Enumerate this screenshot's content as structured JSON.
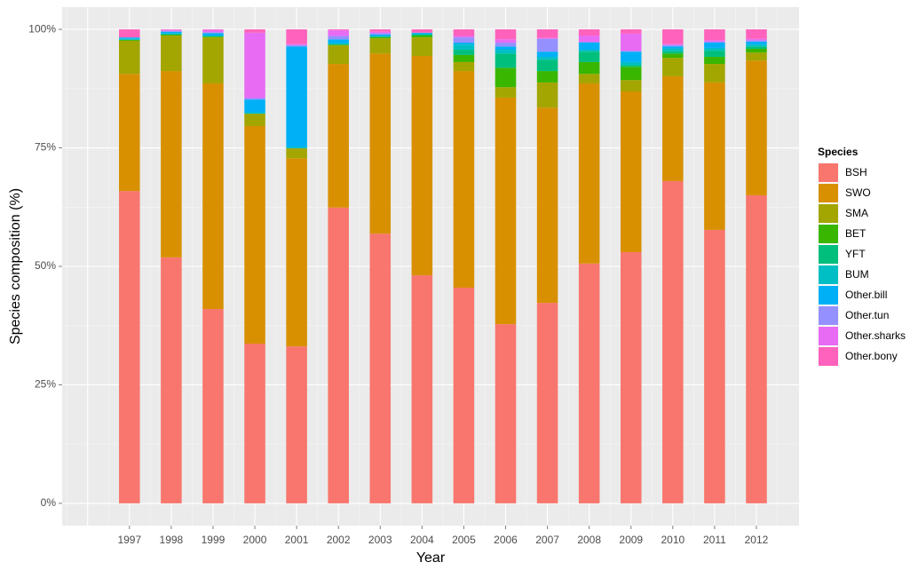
{
  "chart_data": {
    "type": "stacked_bar",
    "x_label": "Year",
    "y_label": "Species composition (%)",
    "legend_title": "Species",
    "legend_position": "right",
    "grid": true,
    "x": [
      1997,
      1998,
      1999,
      2000,
      2001,
      2002,
      2003,
      2004,
      2005,
      2006,
      2007,
      2008,
      2009,
      2010,
      2011,
      2012
    ],
    "xlim": [
      1995.39,
      2013.02
    ],
    "xticks": [
      1997,
      1998,
      1999,
      2000,
      2001,
      2002,
      2003,
      2004,
      2005,
      2006,
      2007,
      2008,
      2009,
      2010,
      2011,
      2012
    ],
    "ylim": [
      -4.7,
      104.7
    ],
    "yticks": [
      {
        "value": 0,
        "label": "0%"
      },
      {
        "value": 25,
        "label": "25%"
      },
      {
        "value": 50,
        "label": "50%"
      },
      {
        "value": 75,
        "label": "75%"
      },
      {
        "value": 100,
        "label": "100%"
      }
    ],
    "series": [
      {
        "name": "BSH",
        "color": "#F8766D",
        "values": [
          65.9,
          51.9,
          41.0,
          33.7,
          33.1,
          62.4,
          56.9,
          48.1,
          45.5,
          37.8,
          42.3,
          50.6,
          53.0,
          68.0,
          57.7,
          65.0
        ]
      },
      {
        "name": "SWO",
        "color": "#D89000",
        "values": [
          24.7,
          39.3,
          47.6,
          45.9,
          39.7,
          30.3,
          38.0,
          46.3,
          45.7,
          47.8,
          41.2,
          38.0,
          33.9,
          22.1,
          31.1,
          28.4
        ]
      },
      {
        "name": "SMA",
        "color": "#A3A500",
        "values": [
          7.0,
          7.5,
          9.7,
          2.6,
          2.1,
          3.9,
          3.2,
          3.9,
          1.9,
          2.2,
          5.3,
          2.0,
          2.4,
          3.9,
          3.9,
          1.7
        ]
      },
      {
        "name": "BET",
        "color": "#39B600",
        "values": [
          0.2,
          0.2,
          0.2,
          0,
          0,
          0.2,
          0.3,
          0.4,
          1.5,
          4.1,
          2.4,
          2.5,
          2.8,
          0.9,
          1.5,
          0.8
        ]
      },
      {
        "name": "YFT",
        "color": "#00BF7D",
        "values": [
          0,
          0,
          0,
          0,
          0,
          0,
          0,
          0.2,
          1.1,
          3.0,
          2.4,
          2.2,
          0.4,
          0.5,
          1.3,
          0.5
        ]
      },
      {
        "name": "BUM",
        "color": "#00BFC4",
        "values": [
          0.2,
          0.3,
          0.2,
          0.3,
          0.3,
          0.3,
          0.2,
          0.2,
          1.1,
          0.8,
          0.6,
          0.4,
          0.6,
          0.6,
          0.6,
          0.4
        ]
      },
      {
        "name": "Other.bill",
        "color": "#00B0F6",
        "values": [
          0.3,
          0.3,
          0.5,
          2.7,
          21.2,
          0.8,
          0.3,
          0.2,
          0.4,
          0.7,
          1.1,
          1.5,
          2.2,
          0.4,
          1.1,
          0.6
        ]
      },
      {
        "name": "Other.tun",
        "color": "#9590FF",
        "values": [
          0,
          0.2,
          0.2,
          0.3,
          0.3,
          0.7,
          0.3,
          0,
          1.1,
          0.8,
          2.7,
          0.2,
          0.2,
          0.3,
          0.2,
          0.3
        ]
      },
      {
        "name": "Other.sharks",
        "color": "#E76BF3",
        "values": [
          0,
          0.2,
          0.5,
          13.8,
          0.2,
          1.2,
          0.3,
          0,
          0.3,
          0.7,
          0.2,
          1.3,
          3.6,
          0.2,
          0.3,
          0.3
        ]
      },
      {
        "name": "Other.bony",
        "color": "#FF62BC",
        "values": [
          1.7,
          0.1,
          0.1,
          0.7,
          3.1,
          0.2,
          0.5,
          0.7,
          1.4,
          2.1,
          1.8,
          1.3,
          0.9,
          3.1,
          2.3,
          2.0
        ]
      }
    ]
  }
}
